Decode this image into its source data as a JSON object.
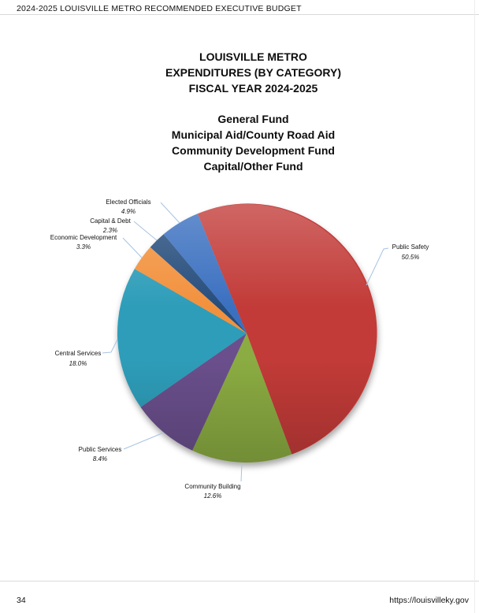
{
  "header": {
    "text": "2024-2025 LOUISVILLE METRO RECOMMENDED EXECUTIVE BUDGET"
  },
  "title_lines": [
    "LOUISVILLE METRO",
    "EXPENDITURES (BY CATEGORY)",
    "FISCAL YEAR 2024-2025"
  ],
  "subtitle_lines": [
    "General Fund",
    "Municipal Aid/County Road Aid",
    "Community Development Fund",
    "Capital/Other Fund"
  ],
  "chart_data": {
    "type": "pie",
    "title": "Louisville Metro Expenditures (By Category) Fiscal Year 2024-2025",
    "start_angle_deg": -22.3,
    "direction": "clockwise",
    "total": 100.0,
    "slices": [
      {
        "label": "Public Safety",
        "value": 50.5,
        "display": "50.5%",
        "color": "#c23a38"
      },
      {
        "label": "Community Building",
        "value": 12.6,
        "display": "12.6%",
        "color": "#8bac43"
      },
      {
        "label": "Public Services",
        "value": 8.4,
        "display": "8.4%",
        "color": "#6a4f8c"
      },
      {
        "label": "Central Services",
        "value": 18.0,
        "display": "18.0%",
        "color": "#2f9db9"
      },
      {
        "label": "Economic Development",
        "value": 3.3,
        "display": "3.3%",
        "color": "#f2913c"
      },
      {
        "label": "Capital & Debt",
        "value": 2.3,
        "display": "2.3%",
        "color": "#264d7b"
      },
      {
        "label": "Elected Officials",
        "value": 4.9,
        "display": "4.9%",
        "color": "#3b70c0"
      }
    ],
    "leader_line_color": "#a6c4e4",
    "legend_position": "none",
    "labels_outside": true
  },
  "footer": {
    "page_number": "34",
    "url": "https://louisvilleky.gov"
  }
}
